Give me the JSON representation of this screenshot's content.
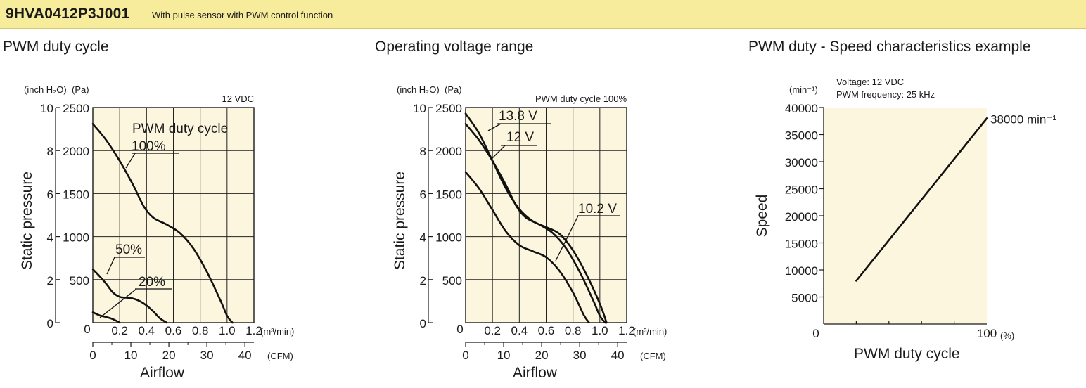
{
  "header": {
    "model": "9HVA0412P3J001",
    "description": "With pulse sensor with PWM control function"
  },
  "panels": [
    {
      "title": "PWM duty cycle"
    },
    {
      "title": "Operating voltage range"
    },
    {
      "title": "PWM duty - Speed characteristics example"
    }
  ],
  "chart_data": [
    {
      "type": "line",
      "title": "PWM duty cycle",
      "condition": "12 VDC",
      "legend_title": "PWM duty cycle",
      "xlabel": "Airflow",
      "ylabel": "Static pressure",
      "x_unit_primary": "(m³/min)",
      "x_unit_secondary": "(CFM)",
      "y_unit_primary": "(Pa)",
      "y_unit_secondary": "(inch H₂O)",
      "xlim": [
        0,
        1.2
      ],
      "ylim": [
        0,
        2500
      ],
      "x_ticks": [
        "0",
        "0.2",
        "0.4",
        "0.6",
        "0.8",
        "1.0",
        "1.2"
      ],
      "x_ticks_cfm": [
        "0",
        "10",
        "20",
        "30",
        "40"
      ],
      "y_ticks": [
        "500",
        "1000",
        "1500",
        "2000",
        "2500"
      ],
      "y_ticks_inch": [
        "0",
        "2",
        "4",
        "6",
        "8",
        "10"
      ],
      "grid": true,
      "series": [
        {
          "name": "100%",
          "x": [
            0,
            0.1,
            0.2,
            0.3,
            0.38,
            0.45,
            0.55,
            0.65,
            0.75,
            0.85,
            0.95,
            1.0,
            1.04
          ],
          "y": [
            2310,
            2120,
            1880,
            1600,
            1350,
            1220,
            1140,
            1040,
            860,
            590,
            260,
            80,
            0
          ]
        },
        {
          "name": "50%",
          "x": [
            0,
            0.05,
            0.1,
            0.15,
            0.2,
            0.25,
            0.3,
            0.35,
            0.4,
            0.45,
            0.5,
            0.55
          ],
          "y": [
            620,
            540,
            450,
            350,
            300,
            290,
            280,
            250,
            200,
            130,
            50,
            0
          ]
        },
        {
          "name": "20%",
          "x": [
            0,
            0.05,
            0.1,
            0.15,
            0.2
          ],
          "y": [
            120,
            85,
            65,
            40,
            0
          ]
        }
      ]
    },
    {
      "type": "line",
      "title": "Operating voltage range",
      "condition": "PWM duty cycle 100%",
      "xlabel": "Airflow",
      "ylabel": "Static pressure",
      "x_unit_primary": "(m³/min)",
      "x_unit_secondary": "(CFM)",
      "y_unit_primary": "(Pa)",
      "y_unit_secondary": "(inch H₂O)",
      "xlim": [
        0,
        1.2
      ],
      "ylim": [
        0,
        2500
      ],
      "x_ticks": [
        "0",
        "0.2",
        "0.4",
        "0.6",
        "0.8",
        "1.0",
        "1.2"
      ],
      "x_ticks_cfm": [
        "0",
        "10",
        "20",
        "30",
        "40"
      ],
      "y_ticks": [
        "500",
        "1000",
        "1500",
        "2000",
        "2500"
      ],
      "y_ticks_inch": [
        "0",
        "2",
        "4",
        "6",
        "8",
        "10"
      ],
      "grid": true,
      "series": [
        {
          "name": "13.8 V",
          "x": [
            0,
            0.1,
            0.2,
            0.3,
            0.4,
            0.5,
            0.6,
            0.7,
            0.8,
            0.9,
            1.0,
            1.05
          ],
          "y": [
            2430,
            2200,
            1880,
            1560,
            1320,
            1180,
            1110,
            1030,
            840,
            560,
            220,
            0
          ]
        },
        {
          "name": "12 V",
          "x": [
            0,
            0.1,
            0.2,
            0.3,
            0.38,
            0.45,
            0.55,
            0.65,
            0.75,
            0.85,
            0.95,
            1.0,
            1.04
          ],
          "y": [
            2310,
            2120,
            1880,
            1600,
            1350,
            1220,
            1140,
            1040,
            860,
            590,
            260,
            80,
            0
          ]
        },
        {
          "name": "10.2 V",
          "x": [
            0,
            0.1,
            0.2,
            0.3,
            0.4,
            0.5,
            0.6,
            0.7,
            0.8,
            0.88,
            0.92
          ],
          "y": [
            1750,
            1560,
            1310,
            1060,
            900,
            830,
            760,
            600,
            350,
            90,
            0
          ]
        }
      ]
    },
    {
      "type": "line",
      "title": "PWM duty - Speed characteristics example",
      "condition_voltage": "Voltage: 12 VDC",
      "condition_frequency": "PWM frequency: 25 kHz",
      "xlabel": "PWM duty cycle",
      "ylabel": "Speed",
      "x_unit": "(%)",
      "y_unit": "(min⁻¹)",
      "xlim": [
        0,
        100
      ],
      "ylim": [
        0,
        40000
      ],
      "x_ticks": [
        "0",
        "100"
      ],
      "y_ticks": [
        "5000",
        "10000",
        "15000",
        "20000",
        "25000",
        "30000",
        "35000",
        "40000"
      ],
      "grid": false,
      "annotation": "38000 min⁻¹",
      "series": [
        {
          "x": [
            20,
            100
          ],
          "y": [
            8000,
            38000
          ]
        }
      ]
    }
  ]
}
